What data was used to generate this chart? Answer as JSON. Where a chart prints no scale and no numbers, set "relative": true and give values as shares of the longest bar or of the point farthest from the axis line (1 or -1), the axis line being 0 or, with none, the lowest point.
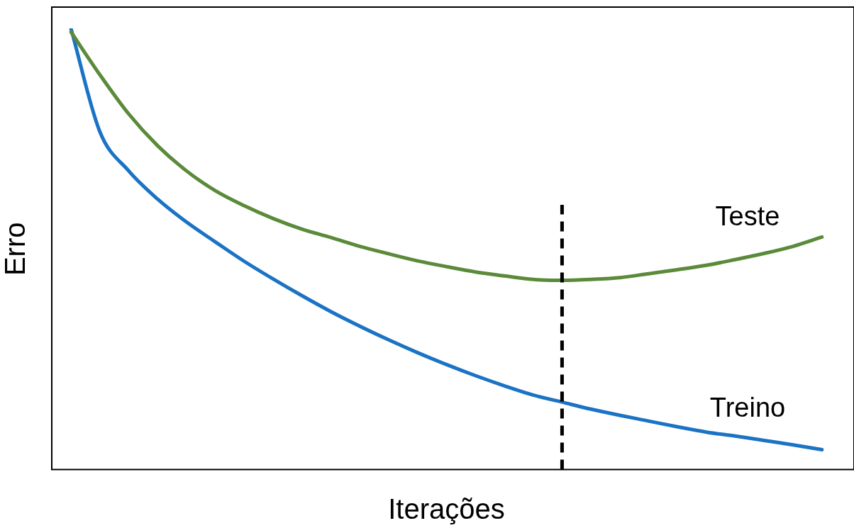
{
  "chart_data": {
    "type": "line",
    "relative": true,
    "xlabel": "Iterações",
    "ylabel": "Erro",
    "categories": [
      null,
      null,
      null,
      null,
      null,
      null,
      null,
      null,
      null,
      null,
      null,
      null,
      null,
      null,
      null,
      null,
      null,
      null,
      null,
      null,
      null,
      null,
      null,
      null,
      null,
      null,
      null
    ],
    "series": [
      {
        "name": "Teste",
        "color": "#5a8a3a",
        "values": [
          0.992,
          0.895,
          0.806,
          0.734,
          0.677,
          0.632,
          0.598,
          0.569,
          0.545,
          0.526,
          0.506,
          0.489,
          0.473,
          0.46,
          0.448,
          0.439,
          0.431,
          0.429,
          0.431,
          0.435,
          0.444,
          0.453,
          0.463,
          0.476,
          0.49,
          0.506,
          0.527
        ]
      },
      {
        "name": "Treino",
        "color": "#1a73c4",
        "values": [
          1.0,
          0.766,
          0.677,
          0.613,
          0.561,
          0.516,
          0.472,
          0.432,
          0.394,
          0.358,
          0.325,
          0.294,
          0.265,
          0.238,
          0.213,
          0.19,
          0.169,
          0.153,
          0.137,
          0.123,
          0.11,
          0.097,
          0.085,
          0.076,
          0.066,
          0.056,
          0.045
        ]
      }
    ],
    "grid": false,
    "legend": false,
    "marker": "none",
    "line_style": "solid"
  }
}
